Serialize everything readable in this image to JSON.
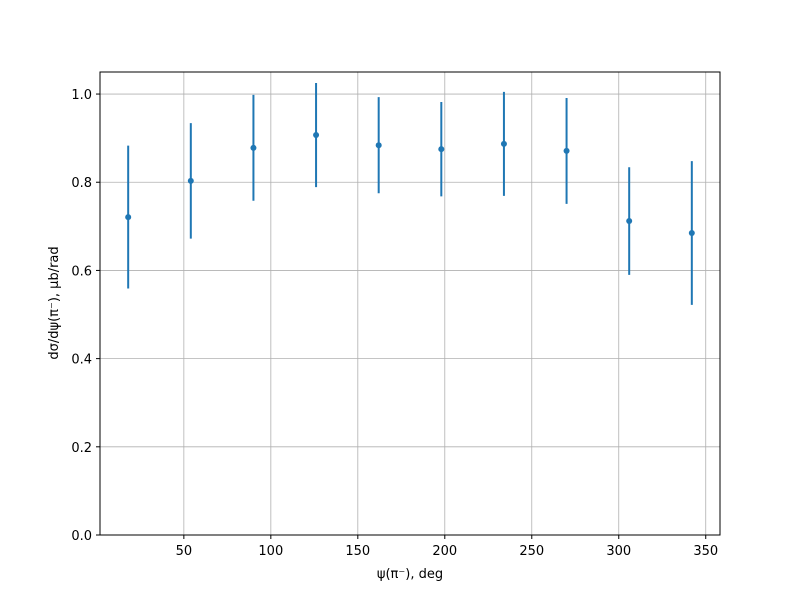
{
  "chart_data": {
    "type": "errorbar",
    "x_label": "ψ(π⁻), deg",
    "y_label": "dσ/dψ(π⁻), μb/rad",
    "x": [
      18,
      54,
      90,
      126,
      162,
      198,
      234,
      270,
      306,
      342
    ],
    "values": [
      0.721,
      0.803,
      0.878,
      0.907,
      0.884,
      0.875,
      0.887,
      0.871,
      0.712,
      0.685
    ],
    "errors": [
      0.162,
      0.131,
      0.12,
      0.118,
      0.109,
      0.107,
      0.118,
      0.12,
      0.122,
      0.163
    ],
    "color": "#1f77b4",
    "xlim": [
      1.8,
      358.2
    ],
    "xticks": [
      50,
      100,
      150,
      200,
      250,
      300,
      350
    ],
    "ylim": [
      0,
      1.05
    ],
    "yticks": [
      {
        "value": 0,
        "label": "0.0"
      },
      0.2,
      0.4,
      0.6,
      0.8,
      {
        "value": 1,
        "label": "1.0"
      }
    ],
    "grid": true
  }
}
